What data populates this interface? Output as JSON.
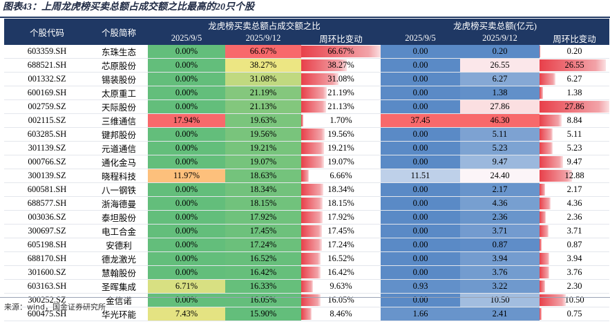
{
  "title": "图表43：上周龙虎榜买卖总额占成交额之比最高的20只个股",
  "source": "来源：wind，国金证券研究所",
  "headers": {
    "code": "个股代码",
    "name": "个股简称",
    "group_ratio": "龙虎榜买卖总额占成交额之比",
    "group_amount": "龙虎榜买卖总额(亿元)",
    "date1": "2025/9/5",
    "date2": "2025/9/12",
    "wow": "周环比变动"
  },
  "colors": {
    "header_bg": "#1f3864",
    "bar_red": "#e8404a",
    "green": "#63be7b",
    "blue": "#5b8ad0"
  },
  "rows": [
    {
      "code": "603359.SH",
      "name": "东珠生态",
      "r1": "0.00%",
      "r2": "66.67%",
      "rc": "66.67%",
      "a1": "0.00",
      "a2": "0.20",
      "ac": "0.20"
    },
    {
      "code": "688521.SH",
      "name": "芯原股份",
      "r1": "0.00%",
      "r2": "38.27%",
      "rc": "38.27%",
      "a1": "0.00",
      "a2": "26.55",
      "ac": "26.55"
    },
    {
      "code": "001332.SZ",
      "name": "锡装股份",
      "r1": "0.00%",
      "r2": "31.08%",
      "rc": "31.08%",
      "a1": "0.00",
      "a2": "6.27",
      "ac": "6.27"
    },
    {
      "code": "600169.SH",
      "name": "太原重工",
      "r1": "0.00%",
      "r2": "21.19%",
      "rc": "21.19%",
      "a1": "0.00",
      "a2": "1.38",
      "ac": "1.38"
    },
    {
      "code": "002759.SZ",
      "name": "天际股份",
      "r1": "0.00%",
      "r2": "21.13%",
      "rc": "21.13%",
      "a1": "0.00",
      "a2": "27.86",
      "ac": "27.86"
    },
    {
      "code": "002115.SZ",
      "name": "三维通信",
      "r1": "17.94%",
      "r2": "19.63%",
      "rc": "1.70%",
      "a1": "37.45",
      "a2": "46.30",
      "ac": "8.84"
    },
    {
      "code": "603285.SH",
      "name": "键邦股份",
      "r1": "0.00%",
      "r2": "19.56%",
      "rc": "19.56%",
      "a1": "0.00",
      "a2": "5.11",
      "ac": "5.11"
    },
    {
      "code": "301139.SZ",
      "name": "元道通信",
      "r1": "0.00%",
      "r2": "19.21%",
      "rc": "19.21%",
      "a1": "0.00",
      "a2": "5.23",
      "ac": "5.23"
    },
    {
      "code": "000766.SZ",
      "name": "通化金马",
      "r1": "0.00%",
      "r2": "19.07%",
      "rc": "19.07%",
      "a1": "0.00",
      "a2": "9.47",
      "ac": "9.47"
    },
    {
      "code": "300139.SZ",
      "name": "晓程科技",
      "r1": "11.97%",
      "r2": "18.63%",
      "rc": "6.66%",
      "a1": "11.51",
      "a2": "24.40",
      "ac": "12.88"
    },
    {
      "code": "600581.SH",
      "name": "八一钢铁",
      "r1": "0.00%",
      "r2": "18.34%",
      "rc": "18.34%",
      "a1": "0.00",
      "a2": "2.17",
      "ac": "2.17"
    },
    {
      "code": "688577.SH",
      "name": "浙海德曼",
      "r1": "0.00%",
      "r2": "18.15%",
      "rc": "18.15%",
      "a1": "0.00",
      "a2": "4.36",
      "ac": "4.36"
    },
    {
      "code": "003036.SZ",
      "name": "泰坦股份",
      "r1": "0.00%",
      "r2": "17.92%",
      "rc": "17.92%",
      "a1": "0.00",
      "a2": "2.36",
      "ac": "2.36"
    },
    {
      "code": "300697.SZ",
      "name": "电工合金",
      "r1": "0.00%",
      "r2": "17.45%",
      "rc": "17.45%",
      "a1": "0.00",
      "a2": "3.71",
      "ac": "3.71"
    },
    {
      "code": "605198.SH",
      "name": "安德利",
      "r1": "0.00%",
      "r2": "17.24%",
      "rc": "17.24%",
      "a1": "0.00",
      "a2": "0.87",
      "ac": "0.87"
    },
    {
      "code": "688170.SH",
      "name": "德龙激光",
      "r1": "0.00%",
      "r2": "16.52%",
      "rc": "16.52%",
      "a1": "0.00",
      "a2": "3.94",
      "ac": "3.94"
    },
    {
      "code": "301600.SZ",
      "name": "慧翰股份",
      "r1": "0.00%",
      "r2": "16.42%",
      "rc": "16.42%",
      "a1": "0.00",
      "a2": "3.76",
      "ac": "3.76"
    },
    {
      "code": "603163.SH",
      "name": "圣晖集成",
      "r1": "6.71%",
      "r2": "16.33%",
      "rc": "9.63%",
      "a1": "0.93",
      "a2": "3.22",
      "ac": "2.30"
    },
    {
      "code": "300252.SZ",
      "name": "金信诺",
      "r1": "0.00%",
      "r2": "16.05%",
      "rc": "16.05%",
      "a1": "0.00",
      "a2": "10.50",
      "ac": "10.50"
    },
    {
      "code": "600475.SH",
      "name": "华光环能",
      "r1": "7.43%",
      "r2": "15.90%",
      "rc": "8.46%",
      "a1": "1.66",
      "a2": "2.41",
      "ac": "0.75"
    }
  ]
}
